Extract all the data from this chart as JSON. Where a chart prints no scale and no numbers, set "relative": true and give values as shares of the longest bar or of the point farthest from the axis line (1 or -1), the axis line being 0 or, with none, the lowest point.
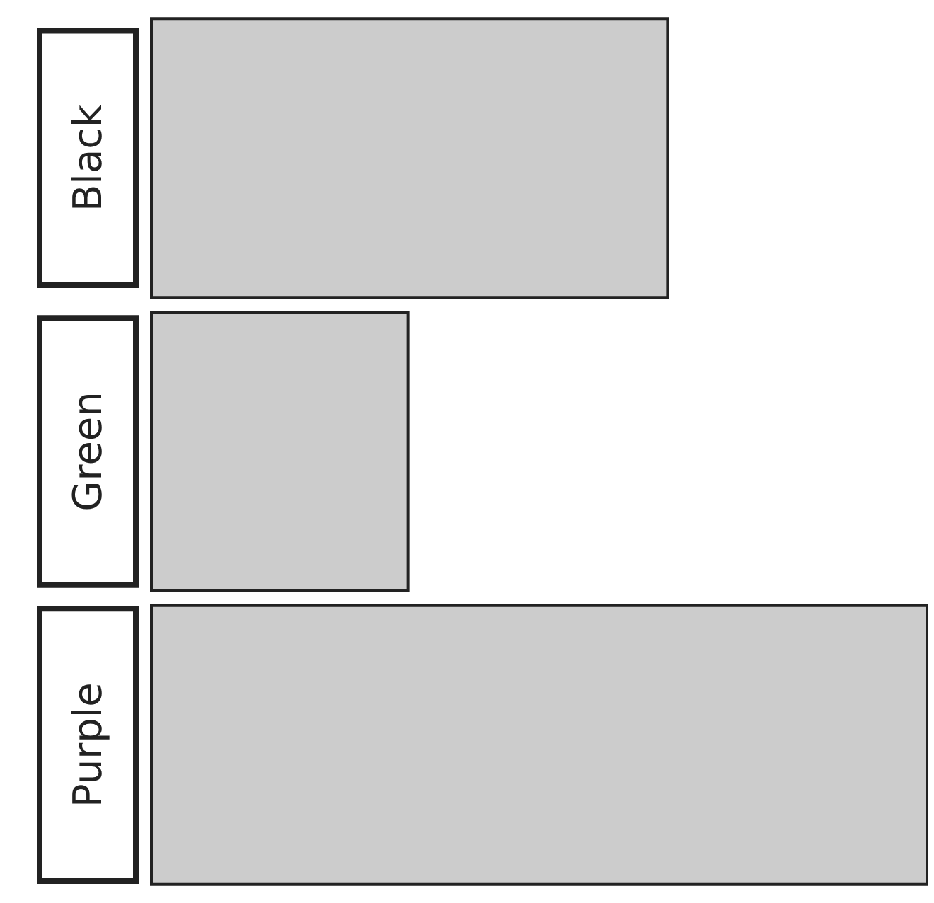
{
  "chart_data": {
    "type": "bar",
    "orientation": "horizontal",
    "relative": true,
    "categories": [
      "Black",
      "Green",
      "Purple"
    ],
    "values": [
      0.6667,
      0.3333,
      1
    ],
    "color": "#cccccc"
  }
}
